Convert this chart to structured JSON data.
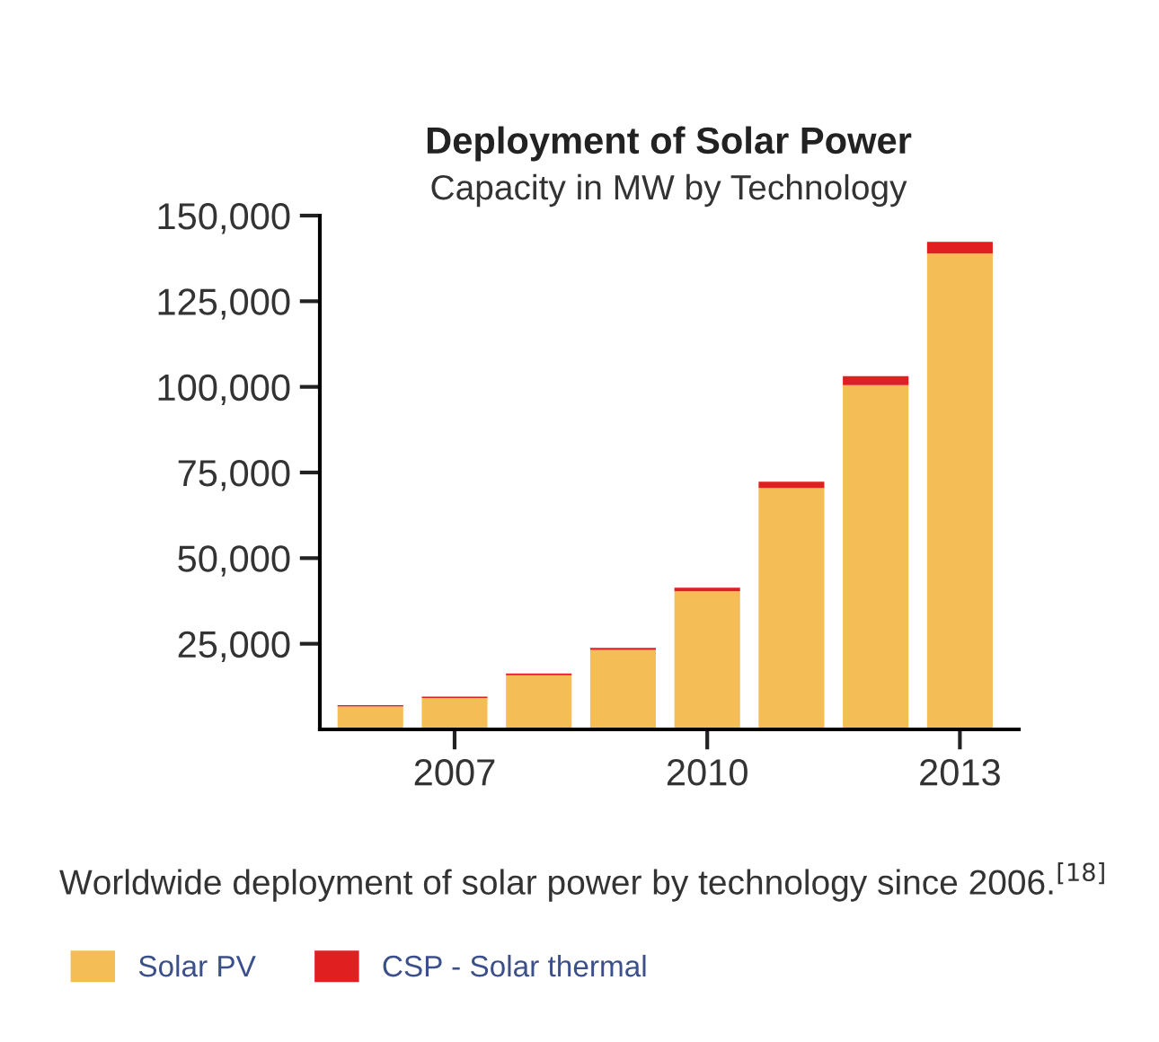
{
  "chart_data": {
    "type": "bar",
    "stacked": true,
    "title": "Deployment of Solar Power",
    "subtitle": "Capacity in MW by Technology",
    "x": [
      2006,
      2007,
      2008,
      2009,
      2010,
      2011,
      2012,
      2013
    ],
    "series": [
      {
        "name": "Solar PV",
        "color": "#f5bd55",
        "values": [
          6700,
          9200,
          15800,
          23200,
          40300,
          70500,
          100500,
          138900
        ]
      },
      {
        "name": "CSP - Solar thermal",
        "color": "#e02020",
        "values": [
          400,
          400,
          500,
          600,
          1100,
          1800,
          2600,
          3400
        ]
      }
    ],
    "xlim": [
      2005.4,
      2013.7
    ],
    "xticks": [
      2007,
      2010,
      2013
    ],
    "ylim": [
      0,
      150000
    ],
    "yticks": [
      {
        "value": 25000,
        "label": "25,000"
      },
      {
        "value": 50000,
        "label": "50,000"
      },
      {
        "value": 75000,
        "label": "75,000"
      },
      {
        "value": 100000,
        "label": "100,000"
      },
      {
        "value": 125000,
        "label": "125,000"
      },
      {
        "value": 150000,
        "label": "150,000"
      }
    ],
    "grid": false,
    "legend": "bottom",
    "annotations": [
      "Worldwide deployment of solar power by technology since 2006.$^{[18]}$"
    ]
  }
}
